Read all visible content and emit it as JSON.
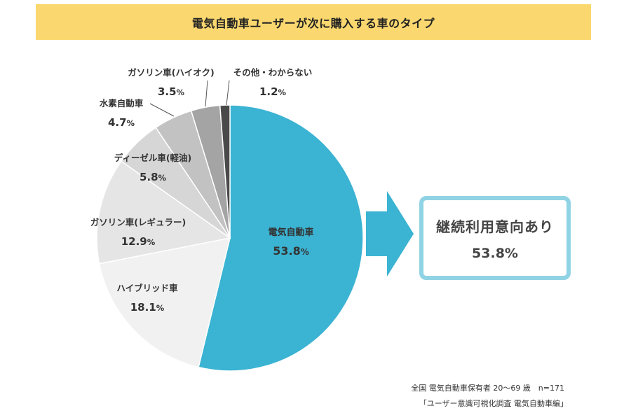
{
  "title": "電気自動車ユーザーが次に購入する車のタイプ",
  "chart_data": {
    "type": "pie",
    "title": "電気自動車ユーザーが次に購入する車のタイプ",
    "value_suffix": "%",
    "slices": [
      {
        "label": "電気自動車",
        "value": 53.8,
        "display": "53.8",
        "color": "#3bb3d2"
      },
      {
        "label": "ハイブリッド車",
        "value": 18.1,
        "display": "18.1",
        "color": "#f1f1f1"
      },
      {
        "label": "ガソリン車(レギュラー)",
        "value": 12.9,
        "display": "12.9",
        "color": "#e6e5e5"
      },
      {
        "label": "ディーゼル車(軽油)",
        "value": 5.8,
        "display": "5.8",
        "color": "#d7d6d6"
      },
      {
        "label": "水素自動車",
        "value": 4.7,
        "display": "4.7",
        "color": "#c3c2c2"
      },
      {
        "label": "ガソリン車(ハイオク)",
        "value": 3.5,
        "display": "3.5",
        "color": "#a5a4a4"
      },
      {
        "label": "その他・わからない",
        "value": 1.2,
        "display": "1.2",
        "color": "#4a4a4a"
      }
    ]
  },
  "callout": {
    "label": "継続利用意向あり",
    "value": "53.8%"
  },
  "footnote": {
    "line1": "全国 電気自動車保有者 20〜69 歳　n=171",
    "line2": "「ユーザー意識可視化調査 電気自動車編」"
  }
}
